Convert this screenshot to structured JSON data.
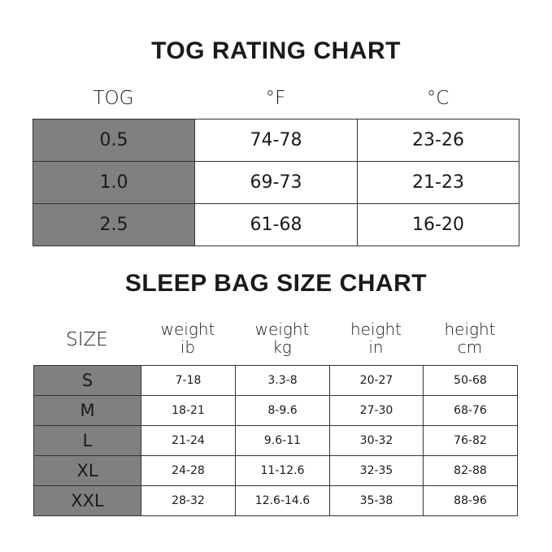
{
  "tog_chart": {
    "title": "TOG RATING CHART",
    "headers": [
      "TOG",
      "°F",
      "°C"
    ],
    "rows": [
      [
        "0.5",
        "74-78",
        "23-26"
      ],
      [
        "1.0",
        "69-73",
        "21-23"
      ],
      [
        "2.5",
        "61-68",
        "16-20"
      ]
    ]
  },
  "size_chart": {
    "title": "SLEEP BAG SIZE CHART",
    "headers": [
      {
        "line1": "SIZE",
        "line2": ""
      },
      {
        "line1": "weight",
        "line2": "ib"
      },
      {
        "line1": "weight",
        "line2": "kg"
      },
      {
        "line1": "height",
        "line2": "in"
      },
      {
        "line1": "height",
        "line2": "cm"
      }
    ],
    "rows": [
      [
        "S",
        "7-18",
        "3.3-8",
        "20-27",
        "50-68"
      ],
      [
        "M",
        "18-21",
        "8-9.6",
        "27-30",
        "68-76"
      ],
      [
        "L",
        "21-24",
        "9.6-11",
        "30-32",
        "76-82"
      ],
      [
        "XL",
        "24-28",
        "11-12.6",
        "32-35",
        "82-88"
      ],
      [
        "XXL",
        "28-32",
        "12.6-14.6",
        "35-38",
        "88-96"
      ]
    ]
  },
  "colors": {
    "label_column": "#808080",
    "border": "#333333"
  }
}
